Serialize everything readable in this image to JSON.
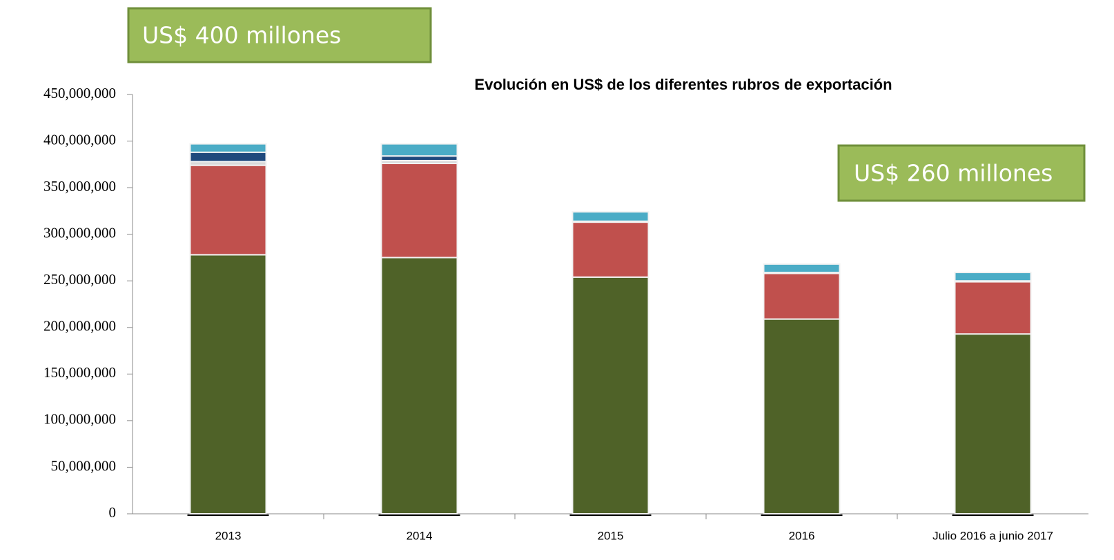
{
  "chart_data": {
    "type": "stacked_bar",
    "title": "Evolución en US$ de los diferentes rubros de exportación",
    "annotations": [
      "US$ 400 millones",
      "US$ 260 millones"
    ],
    "categories": [
      "2013",
      "2014",
      "2015",
      "2016",
      "Julio 2016 a junio 2017"
    ],
    "series": [
      {
        "color": "#4f6228",
        "values": [
          278000000,
          275000000,
          254000000,
          209000000,
          193000000
        ]
      },
      {
        "color": "#c0504d",
        "values": [
          96000000,
          101000000,
          59000000,
          49000000,
          56000000
        ]
      },
      {
        "color": "#d9d9d9",
        "values": [
          4000000,
          3000000,
          1000000,
          1000000,
          1000000
        ]
      },
      {
        "color": "#1f497d",
        "values": [
          10000000,
          5000000,
          0,
          0,
          0
        ]
      },
      {
        "color": "#4bacc6",
        "values": [
          9000000,
          13000000,
          10000000,
          9000000,
          9000000
        ]
      }
    ],
    "ylim": [
      0,
      450000000
    ],
    "yticks": [
      0,
      {
        "value": 50000000,
        "label": "50,000,000"
      },
      {
        "value": 100000000,
        "label": "100,000,000"
      },
      {
        "value": 150000000,
        "label": "150,000,000"
      },
      {
        "value": 200000000,
        "label": "200,000,000"
      },
      {
        "value": 250000000,
        "label": "250,000,000"
      },
      {
        "value": 300000000,
        "label": "300,000,000"
      },
      {
        "value": 350000000,
        "label": "350,000,000"
      },
      {
        "value": 400000000,
        "label": "400,000,000"
      },
      {
        "value": 450000000,
        "label": "450,000,000"
      }
    ]
  }
}
